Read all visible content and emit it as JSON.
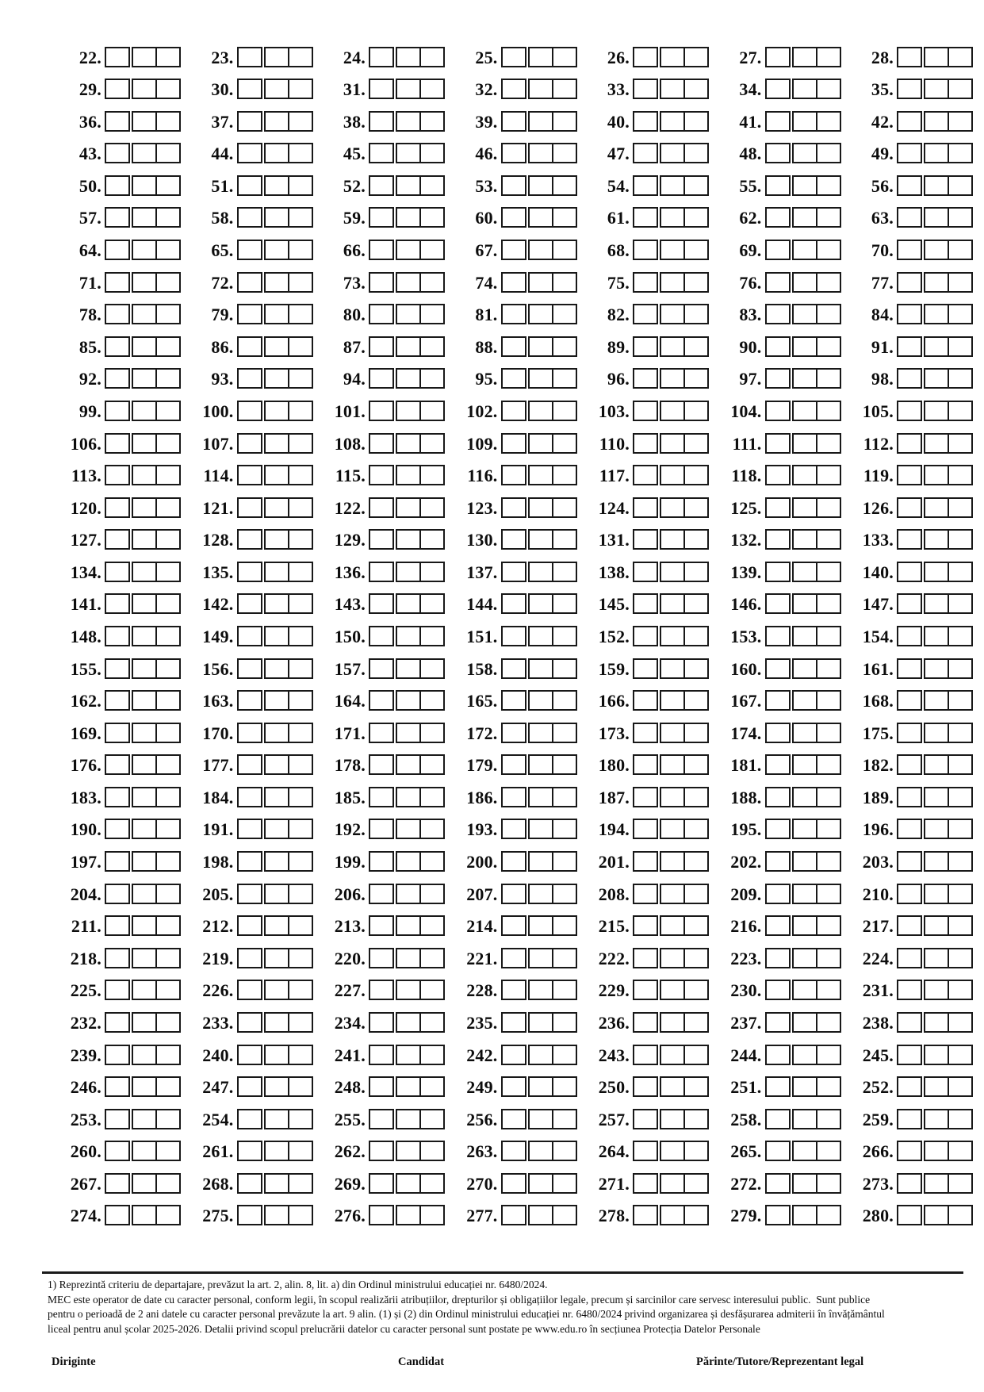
{
  "page": {
    "background_color": "#ffffff",
    "ink_color": "#0d0d0d",
    "box_border_color": "#181818"
  },
  "grid": {
    "start": 22,
    "end": 280,
    "columns": 7,
    "rows": 37,
    "boxes_per_item": 3,
    "number_suffix": ".",
    "box_values": [
      "",
      "",
      ""
    ],
    "numbers": [
      22,
      23,
      24,
      25,
      26,
      27,
      28,
      29,
      30,
      31,
      32,
      33,
      34,
      35,
      36,
      37,
      38,
      39,
      40,
      41,
      42,
      43,
      44,
      45,
      46,
      47,
      48,
      49,
      50,
      51,
      52,
      53,
      54,
      55,
      56,
      57,
      58,
      59,
      60,
      61,
      62,
      63,
      64,
      65,
      66,
      67,
      68,
      69,
      70,
      71,
      72,
      73,
      74,
      75,
      76,
      77,
      78,
      79,
      80,
      81,
      82,
      83,
      84,
      85,
      86,
      87,
      88,
      89,
      90,
      91,
      92,
      93,
      94,
      95,
      96,
      97,
      98,
      99,
      100,
      101,
      102,
      103,
      104,
      105,
      106,
      107,
      108,
      109,
      110,
      111,
      112,
      113,
      114,
      115,
      116,
      117,
      118,
      119,
      120,
      121,
      122,
      123,
      124,
      125,
      126,
      127,
      128,
      129,
      130,
      131,
      132,
      133,
      134,
      135,
      136,
      137,
      138,
      139,
      140,
      141,
      142,
      143,
      144,
      145,
      146,
      147,
      148,
      149,
      150,
      151,
      152,
      153,
      154,
      155,
      156,
      157,
      158,
      159,
      160,
      161,
      162,
      163,
      164,
      165,
      166,
      167,
      168,
      169,
      170,
      171,
      172,
      173,
      174,
      175,
      176,
      177,
      178,
      179,
      180,
      181,
      182,
      183,
      184,
      185,
      186,
      187,
      188,
      189,
      190,
      191,
      192,
      193,
      194,
      195,
      196,
      197,
      198,
      199,
      200,
      201,
      202,
      203,
      204,
      205,
      206,
      207,
      208,
      209,
      210,
      211,
      212,
      213,
      214,
      215,
      216,
      217,
      218,
      219,
      220,
      221,
      222,
      223,
      224,
      225,
      226,
      227,
      228,
      229,
      230,
      231,
      232,
      233,
      234,
      235,
      236,
      237,
      238,
      239,
      240,
      241,
      242,
      243,
      244,
      245,
      246,
      247,
      248,
      249,
      250,
      251,
      252,
      253,
      254,
      255,
      256,
      257,
      258,
      259,
      260,
      261,
      262,
      263,
      264,
      265,
      266,
      267,
      268,
      269,
      270,
      271,
      272,
      273,
      274,
      275,
      276,
      277,
      278,
      279,
      280
    ]
  },
  "footnote": {
    "lines": [
      "1) Reprezintă criteriu de departajare, prevăzut la art. 2, alin. 8, lit. a) din Ordinul ministrului educației nr. 6480/2024.",
      "MEC este operator de date cu caracter personal, conform legii, în scopul realizării atribuțiilor, drepturilor și obligațiilor legale, precum și sarcinilor care servesc interesului public.  Sunt publice",
      "pentru o perioadă de 2 ani datele cu caracter personal prevăzute la art. 9 alin. (1) și (2) din Ordinul ministrului educației nr. 6480/2024 privind organizarea și desfășurarea admiterii în învățământul",
      "liceal pentru anul școlar 2025-2026. Detalii privind scopul prelucrării datelor cu caracter personal sunt postate pe www.edu.ro în secțiunea Protecția Datelor Personale"
    ]
  },
  "signatures": {
    "diriginte_label": "Diriginte",
    "candidat_label": "Candidat",
    "parinte_label": "Părinte/Tutore/Reprezentant legal"
  }
}
